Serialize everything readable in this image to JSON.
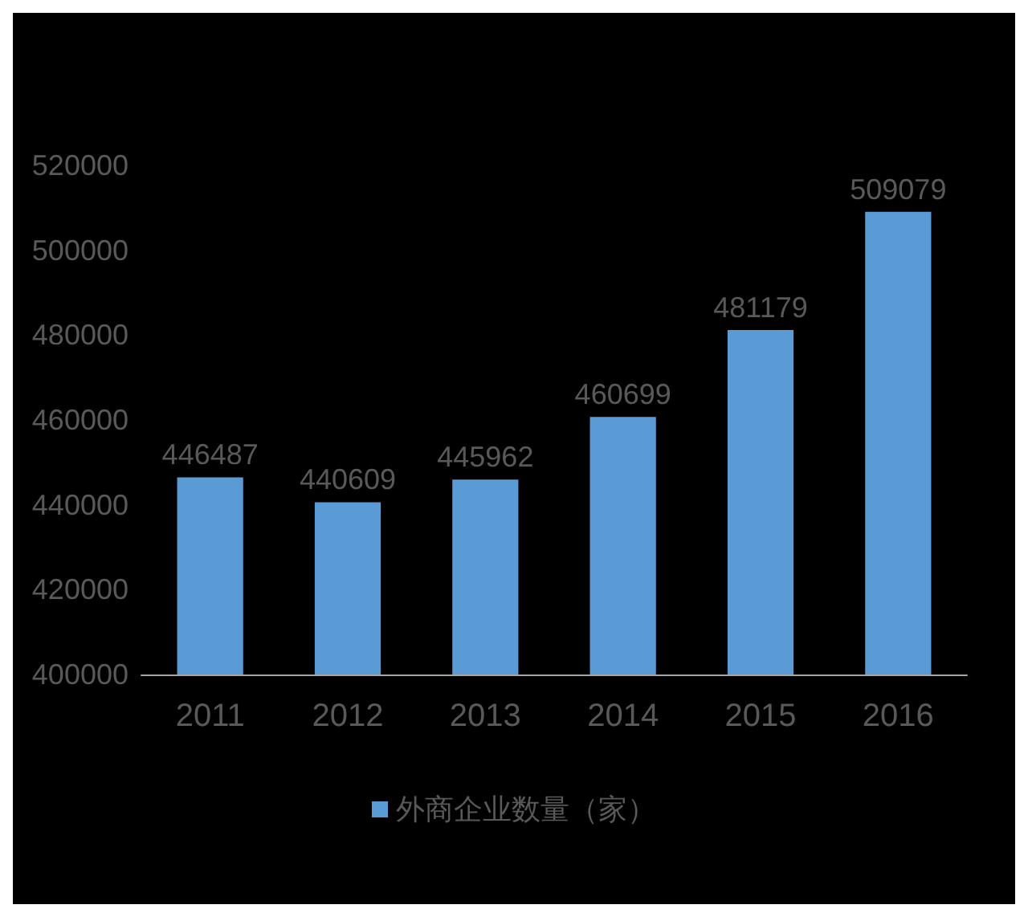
{
  "chart_data": {
    "type": "bar",
    "categories": [
      "2011",
      "2012",
      "2013",
      "2014",
      "2015",
      "2016"
    ],
    "series": [
      {
        "name": "外商企业数量（家）",
        "color": "#5b9bd5",
        "values": [
          446487,
          440609,
          445962,
          460699,
          481179,
          509079
        ]
      }
    ],
    "ylim": [
      400000,
      520000
    ],
    "yticks": [
      400000,
      420000,
      440000,
      460000,
      480000,
      500000,
      520000
    ],
    "data_labels": true,
    "legend": "bottom",
    "grid": false
  }
}
